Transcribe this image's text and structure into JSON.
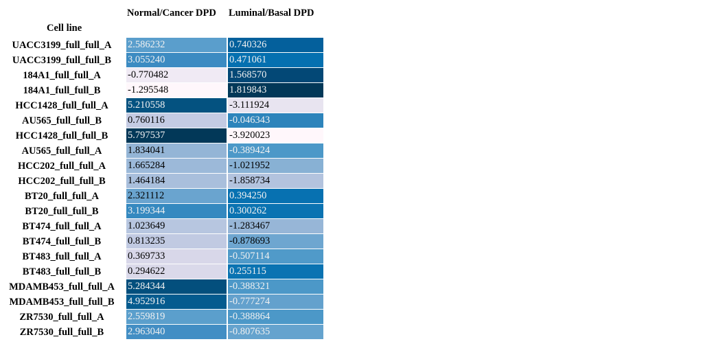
{
  "table": {
    "columns": [
      "Normal/Cancer DPD",
      "Luminal/Basal DPD"
    ],
    "index_name": "Cell line",
    "rows": [
      {
        "label": "UACC3199_full_full_A",
        "values": [
          "2.586232",
          "0.740326"
        ],
        "colors": [
          "#5a9ecc",
          "#04609c"
        ]
      },
      {
        "label": "UACC3199_full_full_B",
        "values": [
          "3.055240",
          "0.471061"
        ],
        "colors": [
          "#3c8bc2",
          "#0570b0"
        ]
      },
      {
        "label": "184A1_full_full_A",
        "values": [
          "-0.770482",
          "1.568570"
        ],
        "colors": [
          "#f0eaf4",
          "#034876"
        ]
      },
      {
        "label": "184A1_full_full_B",
        "values": [
          "-1.295548",
          "1.819843"
        ],
        "colors": [
          "#fff7fb",
          "#023858"
        ]
      },
      {
        "label": "HCC1428_full_full_A",
        "values": [
          "5.210558",
          "-3.111924"
        ],
        "colors": [
          "#045280",
          "#e8e4f0"
        ]
      },
      {
        "label": "AU565_full_full_B",
        "values": [
          "0.760116",
          "-0.046343"
        ],
        "colors": [
          "#c4cbe3",
          "#2d84bb"
        ]
      },
      {
        "label": "HCC1428_full_full_B",
        "values": [
          "5.797537",
          "-3.920023"
        ],
        "colors": [
          "#023858",
          "#fff7fb"
        ]
      },
      {
        "label": "AU565_full_full_A",
        "values": [
          "1.834041",
          "-0.389424"
        ],
        "colors": [
          "#94b5d6",
          "#4c98c8"
        ]
      },
      {
        "label": "HCC202_full_full_A",
        "values": [
          "1.665284",
          "-1.021952"
        ],
        "colors": [
          "#9cb9d9",
          "#88b1d4"
        ]
      },
      {
        "label": "HCC202_full_full_B",
        "values": [
          "1.464184",
          "-1.858734"
        ],
        "colors": [
          "#a9bfdc",
          "#b3c3de"
        ]
      },
      {
        "label": "BT20_full_full_A",
        "values": [
          "2.321112",
          "0.394250"
        ],
        "colors": [
          "#6aa4cf",
          "#0771b1"
        ]
      },
      {
        "label": "BT20_full_full_B",
        "values": [
          "3.199344",
          "0.300262"
        ],
        "colors": [
          "#3589c0",
          "#0a73b2"
        ]
      },
      {
        "label": "BT474_full_full_A",
        "values": [
          "1.023649",
          "-1.283467"
        ],
        "colors": [
          "#b7c6e0",
          "#97b6d7"
        ]
      },
      {
        "label": "BT474_full_full_B",
        "values": [
          "0.813235",
          "-0.878693"
        ],
        "colors": [
          "#c1cae2",
          "#6ea6d0"
        ]
      },
      {
        "label": "BT483_full_full_A",
        "values": [
          "0.369733",
          "-0.507114"
        ],
        "colors": [
          "#d8d7e9",
          "#509ac9"
        ]
      },
      {
        "label": "BT483_full_full_B",
        "values": [
          "0.294622",
          "0.255115"
        ],
        "colors": [
          "#dad9ea",
          "#0a73b2"
        ]
      },
      {
        "label": "MDAMB453_full_full_A",
        "values": [
          "5.284344",
          "-0.388321"
        ],
        "colors": [
          "#034f7d",
          "#4c98c8"
        ]
      },
      {
        "label": "MDAMB453_full_full_B",
        "values": [
          "4.952916",
          "-0.777274"
        ],
        "colors": [
          "#045b8f",
          "#63a1cd"
        ]
      },
      {
        "label": "ZR7530_full_full_A",
        "values": [
          "2.559819",
          "-0.388864"
        ],
        "colors": [
          "#5b9fcc",
          "#4c98c8"
        ]
      },
      {
        "label": "ZR7530_full_full_B",
        "values": [
          "2.963040",
          "-0.807635"
        ],
        "colors": [
          "#428ec4",
          "#65a3ce"
        ]
      }
    ]
  }
}
